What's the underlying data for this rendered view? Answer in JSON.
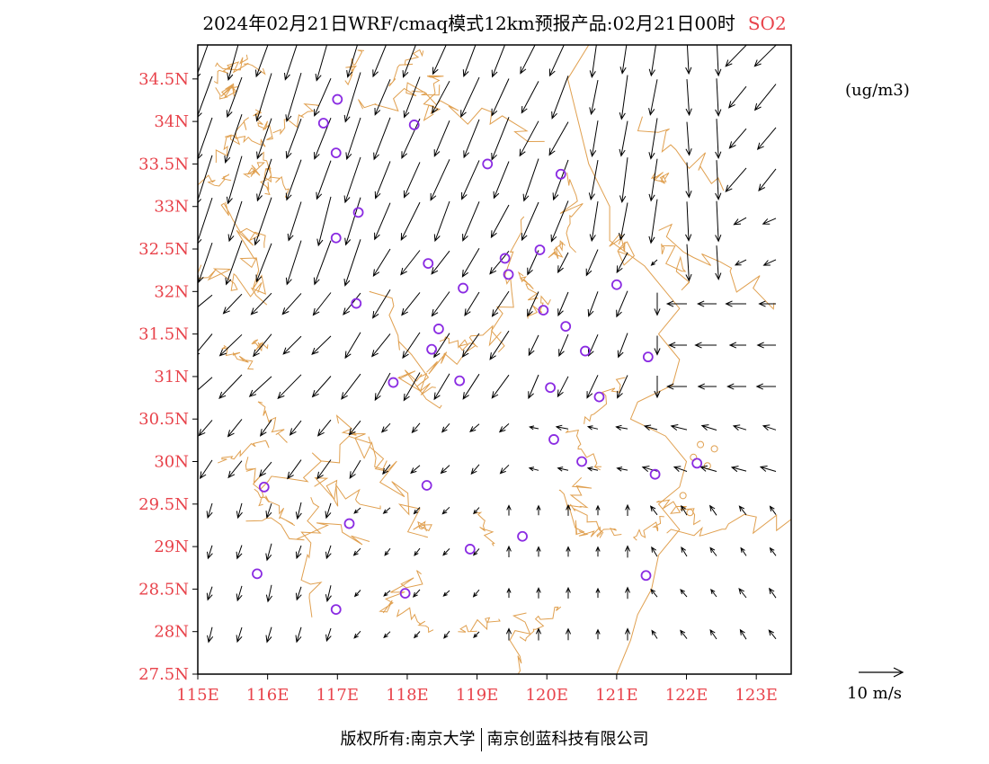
{
  "title": {
    "main": "2024年02月21日WRF/cmaq模式12km预报产品:02月21日00时",
    "pollutant": "SO2"
  },
  "unit": "(ug/m3)",
  "footer": {
    "left": "版权所有:南京大学",
    "right": "南京创蓝科技有限公司"
  },
  "axes": {
    "lon_ticks": [
      "115E",
      "116E",
      "117E",
      "118E",
      "119E",
      "120E",
      "121E",
      "122E",
      "123E"
    ],
    "lat_ticks": [
      "27.5N",
      "28N",
      "28.5N",
      "29N",
      "29.5N",
      "30N",
      "30.5N",
      "31N",
      "31.5N",
      "32N",
      "32.5N",
      "33N",
      "33.5N",
      "34N",
      "34.5N"
    ],
    "lon_range": [
      115,
      123.5
    ],
    "lat_range": [
      27.5,
      34.9
    ]
  },
  "reference_vector": {
    "label": "10 m/s",
    "speed": 10
  },
  "colors": {
    "boundary": "#e0a050",
    "tick_label": "#e8434b",
    "station": "#8a2be2",
    "vector": "#000000"
  },
  "stations": [
    {
      "lon": 117.0,
      "lat": 34.26
    },
    {
      "lon": 116.8,
      "lat": 33.98
    },
    {
      "lon": 118.1,
      "lat": 33.96
    },
    {
      "lon": 116.98,
      "lat": 33.63
    },
    {
      "lon": 119.15,
      "lat": 33.5
    },
    {
      "lon": 120.2,
      "lat": 33.38
    },
    {
      "lon": 117.3,
      "lat": 32.93
    },
    {
      "lon": 116.98,
      "lat": 32.63
    },
    {
      "lon": 119.9,
      "lat": 32.49
    },
    {
      "lon": 119.4,
      "lat": 32.39
    },
    {
      "lon": 118.3,
      "lat": 32.33
    },
    {
      "lon": 119.45,
      "lat": 32.2
    },
    {
      "lon": 121.0,
      "lat": 32.08
    },
    {
      "lon": 118.8,
      "lat": 32.04
    },
    {
      "lon": 117.27,
      "lat": 31.86
    },
    {
      "lon": 119.95,
      "lat": 31.78
    },
    {
      "lon": 118.45,
      "lat": 31.56
    },
    {
      "lon": 120.27,
      "lat": 31.59
    },
    {
      "lon": 118.35,
      "lat": 31.32
    },
    {
      "lon": 120.55,
      "lat": 31.3
    },
    {
      "lon": 121.45,
      "lat": 31.23
    },
    {
      "lon": 117.8,
      "lat": 30.93
    },
    {
      "lon": 118.75,
      "lat": 30.95
    },
    {
      "lon": 120.05,
      "lat": 30.87
    },
    {
      "lon": 120.75,
      "lat": 30.76
    },
    {
      "lon": 120.1,
      "lat": 30.26
    },
    {
      "lon": 120.5,
      "lat": 30.0
    },
    {
      "lon": 122.15,
      "lat": 29.98
    },
    {
      "lon": 121.55,
      "lat": 29.85
    },
    {
      "lon": 115.95,
      "lat": 29.7
    },
    {
      "lon": 118.28,
      "lat": 29.72
    },
    {
      "lon": 117.17,
      "lat": 29.27
    },
    {
      "lon": 119.65,
      "lat": 29.12
    },
    {
      "lon": 118.9,
      "lat": 28.97
    },
    {
      "lon": 115.85,
      "lat": 28.68
    },
    {
      "lon": 121.42,
      "lat": 28.66
    },
    {
      "lon": 117.97,
      "lat": 28.45
    },
    {
      "lon": 116.98,
      "lat": 28.26
    }
  ],
  "wind_field": [
    {
      "lon_min": 115.0,
      "lon_max": 117.5,
      "lat_min": 32.0,
      "lat_max": 34.9,
      "u": -3.5,
      "v": -10.5
    },
    {
      "lon_min": 117.5,
      "lon_max": 120.5,
      "lat_min": 32.5,
      "lat_max": 34.9,
      "u": -4.0,
      "v": -9.0
    },
    {
      "lon_min": 120.5,
      "lon_max": 121.5,
      "lat_min": 32.5,
      "lat_max": 34.9,
      "u": -1.5,
      "v": -9.5
    },
    {
      "lon_min": 121.5,
      "lon_max": 122.3,
      "lat_min": 32.3,
      "lat_max": 34.9,
      "u": 0.5,
      "v": -8.5
    },
    {
      "lon_min": 122.3,
      "lon_max": 123.5,
      "lat_min": 33.2,
      "lat_max": 34.9,
      "u": -4.5,
      "v": -5.5
    },
    {
      "lon_min": 122.3,
      "lon_max": 123.5,
      "lat_min": 32.3,
      "lat_max": 33.2,
      "u": -3.0,
      "v": -1.5
    },
    {
      "lon_min": 115.0,
      "lon_max": 117.0,
      "lat_min": 30.8,
      "lat_max": 32.0,
      "u": -5.0,
      "v": -5.0
    },
    {
      "lon_min": 117.0,
      "lon_max": 119.5,
      "lat_min": 30.8,
      "lat_max": 32.5,
      "u": -4.0,
      "v": -6.0
    },
    {
      "lon_min": 119.5,
      "lon_max": 121.0,
      "lat_min": 30.8,
      "lat_max": 32.5,
      "u": -2.5,
      "v": -5.5
    },
    {
      "lon_min": 121.0,
      "lon_max": 121.8,
      "lat_min": 30.8,
      "lat_max": 32.3,
      "u": 0.0,
      "v": -5.0
    },
    {
      "lon_min": 121.8,
      "lon_max": 123.5,
      "lat_min": 30.8,
      "lat_max": 32.3,
      "u": -4.5,
      "v": 0.0
    },
    {
      "lon_min": 115.0,
      "lon_max": 117.5,
      "lat_min": 29.5,
      "lat_max": 30.8,
      "u": -3.0,
      "v": -4.0
    },
    {
      "lon_min": 117.5,
      "lon_max": 119.5,
      "lat_min": 29.5,
      "lat_max": 30.8,
      "u": -2.0,
      "v": -2.0
    },
    {
      "lon_min": 119.5,
      "lon_max": 121.0,
      "lat_min": 29.5,
      "lat_max": 30.8,
      "u": -2.5,
      "v": 0.5
    },
    {
      "lon_min": 121.0,
      "lon_max": 123.5,
      "lat_min": 29.5,
      "lat_max": 30.8,
      "u": -3.5,
      "v": 1.0
    },
    {
      "lon_min": 115.0,
      "lon_max": 117.0,
      "lat_min": 27.5,
      "lat_max": 29.5,
      "u": -1.0,
      "v": -3.5
    },
    {
      "lon_min": 117.0,
      "lon_max": 119.0,
      "lat_min": 27.5,
      "lat_max": 29.5,
      "u": -1.5,
      "v": -1.5
    },
    {
      "lon_min": 119.0,
      "lon_max": 121.0,
      "lat_min": 27.5,
      "lat_max": 29.5,
      "u": 0.0,
      "v": 2.5
    },
    {
      "lon_min": 121.0,
      "lon_max": 123.5,
      "lat_min": 27.5,
      "lat_max": 29.5,
      "u": -1.5,
      "v": 2.0
    }
  ]
}
